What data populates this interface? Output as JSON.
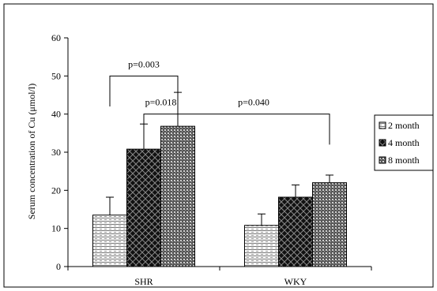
{
  "chart_data": {
    "type": "bar",
    "categories": [
      "SHR",
      "WKY"
    ],
    "series": [
      {
        "name": "2 month",
        "values": [
          13.5,
          10.8
        ],
        "errors": [
          4.7,
          3.0
        ]
      },
      {
        "name": "4 month",
        "values": [
          30.8,
          18.2
        ],
        "errors": [
          6.6,
          3.2
        ]
      },
      {
        "name": "8 month",
        "values": [
          36.8,
          22.0
        ],
        "errors": [
          8.9,
          2.0
        ]
      }
    ],
    "ylabel": "Serum concentration of Cu (μmol/l)",
    "xlabel": "",
    "ylim": [
      0,
      60
    ],
    "yticks": [
      0,
      10,
      20,
      30,
      40,
      50,
      60
    ],
    "legend_position": "right",
    "grid": false,
    "annotations": [
      {
        "text": "p=0.003",
        "from": [
          "SHR",
          "2 month"
        ],
        "to": [
          "SHR",
          "8 month"
        ],
        "level": 50
      },
      {
        "text": "p=0.018",
        "from": [
          "SHR",
          "4 month"
        ],
        "to": [
          "SHR",
          "8 month"
        ],
        "level": 40
      },
      {
        "text": "p=0.040",
        "from": [
          "SHR",
          "8 month"
        ],
        "to": [
          "WKY",
          "8 month"
        ],
        "level": 40
      }
    ]
  }
}
